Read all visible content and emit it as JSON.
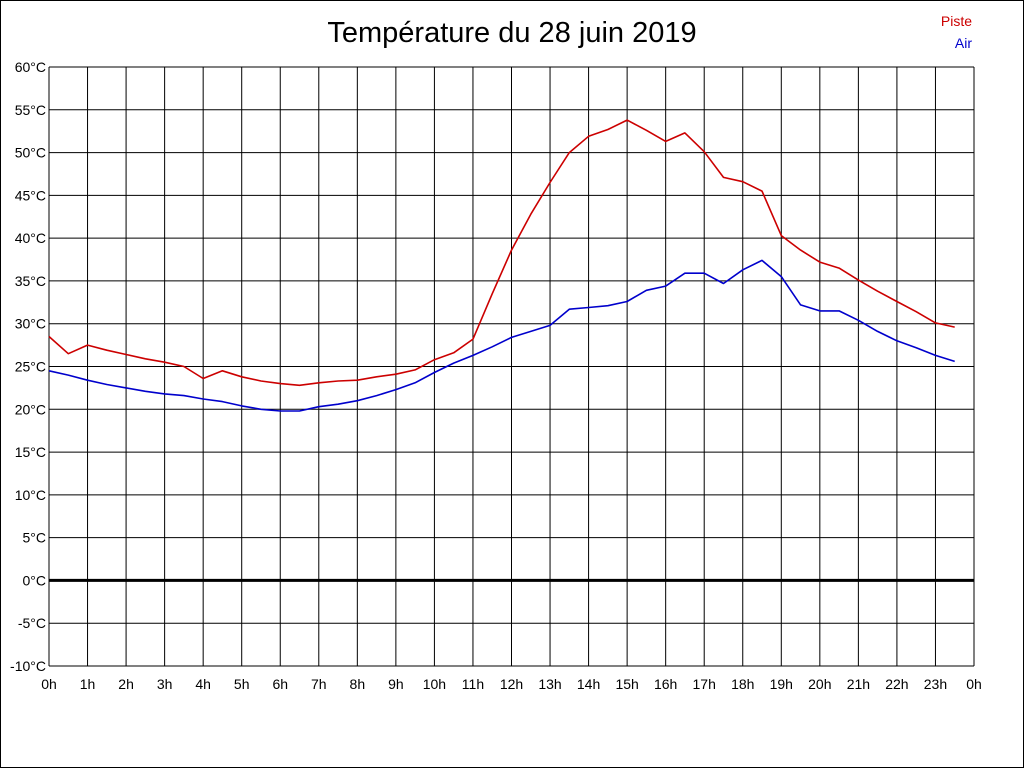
{
  "chart_data": {
    "type": "line",
    "title": "Température du 28 juin 2019",
    "x_tick_labels": [
      "0h",
      "1h",
      "2h",
      "3h",
      "4h",
      "5h",
      "6h",
      "7h",
      "8h",
      "9h",
      "10h",
      "11h",
      "12h",
      "13h",
      "14h",
      "15h",
      "16h",
      "17h",
      "18h",
      "19h",
      "20h",
      "21h",
      "22h",
      "23h",
      "0h"
    ],
    "y_tick_labels": [
      "60°C",
      "55°C",
      "50°C",
      "45°C",
      "40°C",
      "35°C",
      "30°C",
      "25°C",
      "20°C",
      "15°C",
      "10°C",
      "5°C",
      "0°C",
      "-5°C",
      "-10°C"
    ],
    "xlim": [
      0,
      24
    ],
    "ylim": [
      -10,
      60
    ],
    "grid": true,
    "legend_position": "top-right",
    "x": [
      0,
      0.5,
      1,
      1.5,
      2,
      2.5,
      3,
      3.5,
      4,
      4.5,
      5,
      5.5,
      6,
      6.5,
      7,
      7.5,
      8,
      8.5,
      9,
      9.5,
      10,
      10.5,
      11,
      11.5,
      12,
      12.5,
      13,
      13.5,
      14,
      14.5,
      15,
      15.5,
      16,
      16.5,
      17,
      17.5,
      18,
      18.5,
      19,
      19.5,
      20,
      20.5,
      21,
      21.5,
      22,
      22.5,
      23,
      23.5
    ],
    "series": [
      {
        "name": "Piste",
        "color": "#cc0000",
        "values": [
          28.5,
          26.5,
          27.5,
          26.9,
          26.4,
          25.9,
          25.5,
          25.0,
          23.6,
          24.5,
          23.8,
          23.3,
          23.0,
          22.8,
          23.1,
          23.3,
          23.4,
          23.8,
          24.1,
          24.6,
          25.8,
          26.6,
          28.2,
          33.5,
          38.6,
          42.8,
          46.5,
          50.0,
          51.9,
          52.7,
          53.8,
          52.6,
          51.3,
          52.3,
          50.1,
          47.1,
          46.6,
          45.5,
          40.3,
          38.6,
          37.2,
          36.5,
          35.1,
          33.8,
          32.6,
          31.4,
          30.1,
          29.6
        ]
      },
      {
        "name": "Air",
        "color": "#0000cc",
        "values": [
          24.5,
          24.0,
          23.4,
          22.9,
          22.5,
          22.1,
          21.8,
          21.6,
          21.2,
          20.9,
          20.4,
          20.0,
          19.8,
          19.8,
          20.3,
          20.6,
          21.0,
          21.6,
          22.3,
          23.1,
          24.3,
          25.4,
          26.3,
          27.3,
          28.4,
          29.1,
          29.8,
          31.7,
          31.9,
          32.1,
          32.6,
          33.9,
          34.4,
          35.9,
          35.9,
          34.7,
          36.3,
          37.4,
          35.5,
          32.2,
          31.5,
          31.5,
          30.4,
          29.1,
          28.0,
          27.2,
          26.3,
          25.6
        ]
      }
    ]
  }
}
